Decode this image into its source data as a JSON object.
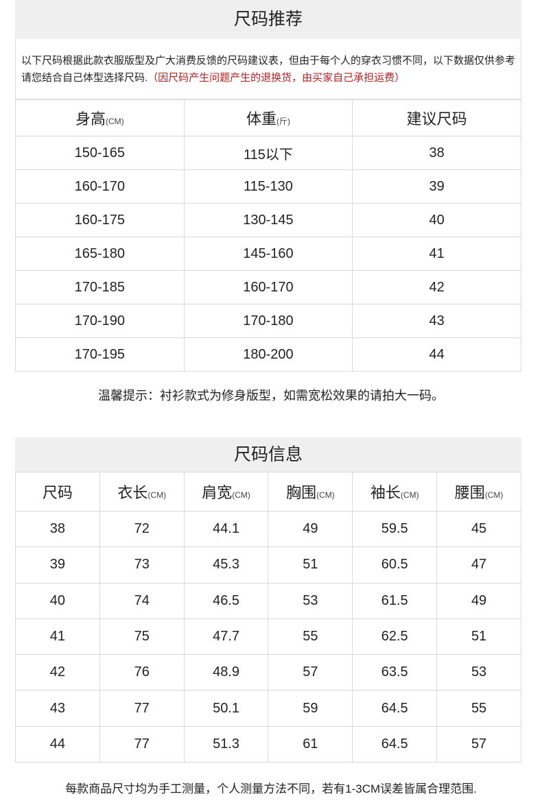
{
  "recommend": {
    "title": "尺码推荐",
    "notice": "以下尺码根据此款衣服版型及广大消费反馈的尺码建议表，但由于每个人的穿衣习惯不同，以下数据仅供参考请您结合自己体型选择尺码.",
    "notice_red": "（因尺码产生问题产生的退换货，由买家自己承担运费）",
    "headers": [
      {
        "label": "身高",
        "unit": "(CM)"
      },
      {
        "label": "体重",
        "unit": "(斤)"
      },
      {
        "label": "建议尺码",
        "unit": ""
      }
    ],
    "rows": [
      [
        "150-165",
        "115以下",
        "38"
      ],
      [
        "160-170",
        "115-130",
        "39"
      ],
      [
        "160-175",
        "130-145",
        "40"
      ],
      [
        "165-180",
        "145-160",
        "41"
      ],
      [
        "170-185",
        "160-170",
        "42"
      ],
      [
        "170-190",
        "170-180",
        "43"
      ],
      [
        "170-195",
        "180-200",
        "44"
      ]
    ],
    "tip": "温馨提示：衬衫款式为修身版型，如需宽松效果的请拍大一码。"
  },
  "info": {
    "title": "尺码信息",
    "headers": [
      {
        "label": "尺码",
        "unit": ""
      },
      {
        "label": "衣长",
        "unit": "(CM)"
      },
      {
        "label": "肩宽",
        "unit": "(CM)"
      },
      {
        "label": "胸围",
        "unit": "(CM)"
      },
      {
        "label": "袖长",
        "unit": "(CM)"
      },
      {
        "label": "腰围",
        "unit": "(CM)"
      }
    ],
    "rows": [
      [
        "38",
        "72",
        "44.1",
        "49",
        "59.5",
        "45"
      ],
      [
        "39",
        "73",
        "45.3",
        "51",
        "60.5",
        "47"
      ],
      [
        "40",
        "74",
        "46.5",
        "53",
        "61.5",
        "49"
      ],
      [
        "41",
        "75",
        "47.7",
        "55",
        "62.5",
        "51"
      ],
      [
        "42",
        "76",
        "48.9",
        "57",
        "63.5",
        "53"
      ],
      [
        "43",
        "77",
        "50.1",
        "59",
        "64.5",
        "55"
      ],
      [
        "44",
        "77",
        "51.3",
        "61",
        "64.5",
        "57"
      ]
    ],
    "footer": "每款商品尺寸均为手工测量，个人测量方法不同，若有1-3CM误差皆属合理范围."
  }
}
